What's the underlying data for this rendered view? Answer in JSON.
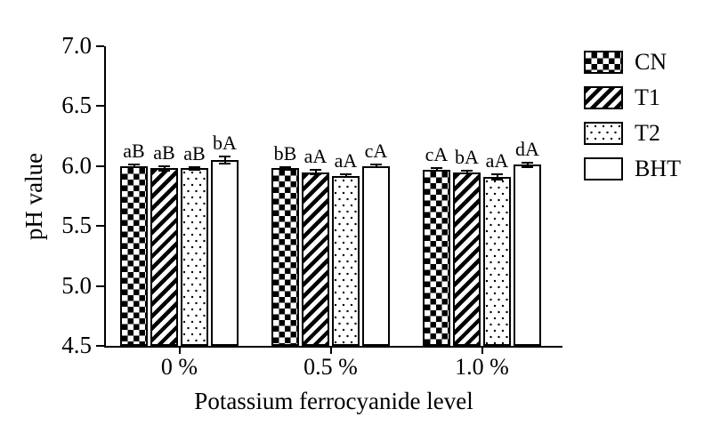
{
  "chart_data": {
    "type": "bar",
    "title": "",
    "xlabel": "Potassium ferrocyanide level",
    "ylabel": "pH value",
    "ylim": [
      4.5,
      7.0
    ],
    "yticks": [
      4.5,
      5.0,
      5.5,
      6.0,
      6.5,
      7.0
    ],
    "ytick_decimals": 1,
    "categories": [
      "0 %",
      "0.5 %",
      "1.0 %"
    ],
    "series": [
      {
        "name": "CN",
        "pattern": "checkerboard",
        "values": [
          6.0,
          5.98,
          5.97
        ],
        "errors": [
          0.01,
          0.01,
          0.01
        ],
        "point_labels": [
          "aB",
          "bB",
          "cA"
        ]
      },
      {
        "name": "T1",
        "pattern": "diagonal-stripes",
        "values": [
          5.98,
          5.95,
          5.95
        ],
        "errors": [
          0.02,
          0.02,
          0.01
        ],
        "point_labels": [
          "aB",
          "aA",
          "bA"
        ]
      },
      {
        "name": "T2",
        "pattern": "dots",
        "values": [
          5.98,
          5.92,
          5.91
        ],
        "errors": [
          0.01,
          0.01,
          0.02
        ],
        "point_labels": [
          "aB",
          "aA",
          "aA"
        ]
      },
      {
        "name": "BHT",
        "pattern": "plain",
        "values": [
          6.05,
          6.0,
          6.01
        ],
        "errors": [
          0.03,
          0.01,
          0.02
        ],
        "point_labels": [
          "bA",
          "cA",
          "dA"
        ]
      }
    ],
    "legend_position": "right",
    "grid": false,
    "colors": {
      "foreground": "#000000",
      "background": "#ffffff"
    }
  }
}
